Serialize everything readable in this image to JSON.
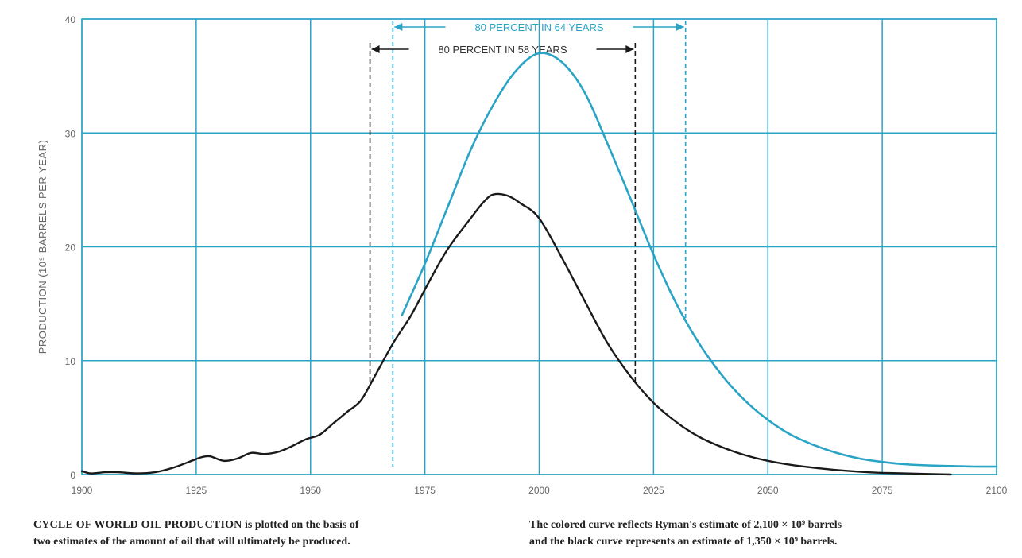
{
  "colors": {
    "grid": "#2aa4c6",
    "colored_curve": "#2aa4c6",
    "black_curve": "#1a1a1a",
    "tick_text": "#666666"
  },
  "chart_data": {
    "type": "line",
    "xlim": [
      1900,
      2100
    ],
    "ylim": [
      0,
      40
    ],
    "x_ticks": [
      1900,
      1925,
      1950,
      1975,
      2000,
      2025,
      2050,
      2075,
      2100
    ],
    "x_tick_labels": [
      "1900",
      "1925",
      "1950",
      "1975",
      "2000",
      "2025",
      "2050",
      "2075",
      "2100"
    ],
    "y_ticks": [
      0,
      10,
      20,
      30,
      40
    ],
    "y_tick_labels": [
      "0",
      "10",
      "20",
      "30",
      "40"
    ],
    "ylabel": "PRODUCTION (10⁹ BARRELS PER YEAR)",
    "xlabel": "",
    "grid": true,
    "series": [
      {
        "color": "colored",
        "x": [
          1970,
          1975,
          1980,
          1985,
          1990,
          1995,
          2000,
          2005,
          2010,
          2015,
          2020,
          2025,
          2030,
          2035,
          2040,
          2045,
          2050,
          2055,
          2060,
          2065,
          2070,
          2075,
          2080,
          2085,
          2090,
          2095,
          2100
        ],
        "y": [
          14,
          18.5,
          23.5,
          28.5,
          32.5,
          35.5,
          37,
          36.2,
          33.5,
          29,
          24.2,
          19.3,
          15,
          11.5,
          8.7,
          6.5,
          4.8,
          3.5,
          2.6,
          1.9,
          1.4,
          1.1,
          0.9,
          0.8,
          0.75,
          0.7,
          0.7
        ]
      },
      {
        "color": "black",
        "x": [
          1900,
          1902,
          1905,
          1908,
          1912,
          1916,
          1920,
          1924,
          1926,
          1928,
          1931,
          1934,
          1937,
          1940,
          1943,
          1946,
          1949,
          1952,
          1955,
          1958,
          1961,
          1964,
          1968,
          1972,
          1976,
          1980,
          1985,
          1988,
          1990,
          1993,
          1996,
          2000,
          2005,
          2010,
          2015,
          2020,
          2025,
          2030,
          2035,
          2040,
          2045,
          2050,
          2055,
          2060,
          2065,
          2070,
          2075,
          2080,
          2085,
          2090
        ],
        "y": [
          0.3,
          0.1,
          0.2,
          0.2,
          0.1,
          0.2,
          0.6,
          1.2,
          1.5,
          1.6,
          1.2,
          1.4,
          1.9,
          1.8,
          2,
          2.5,
          3.1,
          3.5,
          4.5,
          5.5,
          6.5,
          8.6,
          11.5,
          14,
          17,
          19.8,
          22.5,
          24,
          24.6,
          24.5,
          23.8,
          22.5,
          19,
          15.2,
          11.5,
          8.6,
          6.3,
          4.6,
          3.3,
          2.4,
          1.7,
          1.2,
          0.85,
          0.6,
          0.4,
          0.25,
          0.15,
          0.1,
          0.05,
          0
        ]
      }
    ],
    "annotations": [
      {
        "text": "80 PERCENT IN 64 YEARS",
        "color": "colored",
        "x_start": 1968,
        "x_end": 2032
      },
      {
        "text": "80 PERCENT IN 58 YEARS",
        "color": "black",
        "x_start": 1963,
        "x_end": 2021
      }
    ]
  },
  "caption": {
    "left_title": "CYCLE OF WORLD OIL PRODUCTION",
    "left_line1_rest": " is plotted on the basis of",
    "left_line2": "two estimates of the amount of oil that will ultimately be produced.",
    "right_line1": "The colored curve reflects Ryman's estimate of 2,100 × 10⁹ barrels",
    "right_line2": "and the black curve represents an estimate of 1,350 × 10⁹ barrels."
  }
}
